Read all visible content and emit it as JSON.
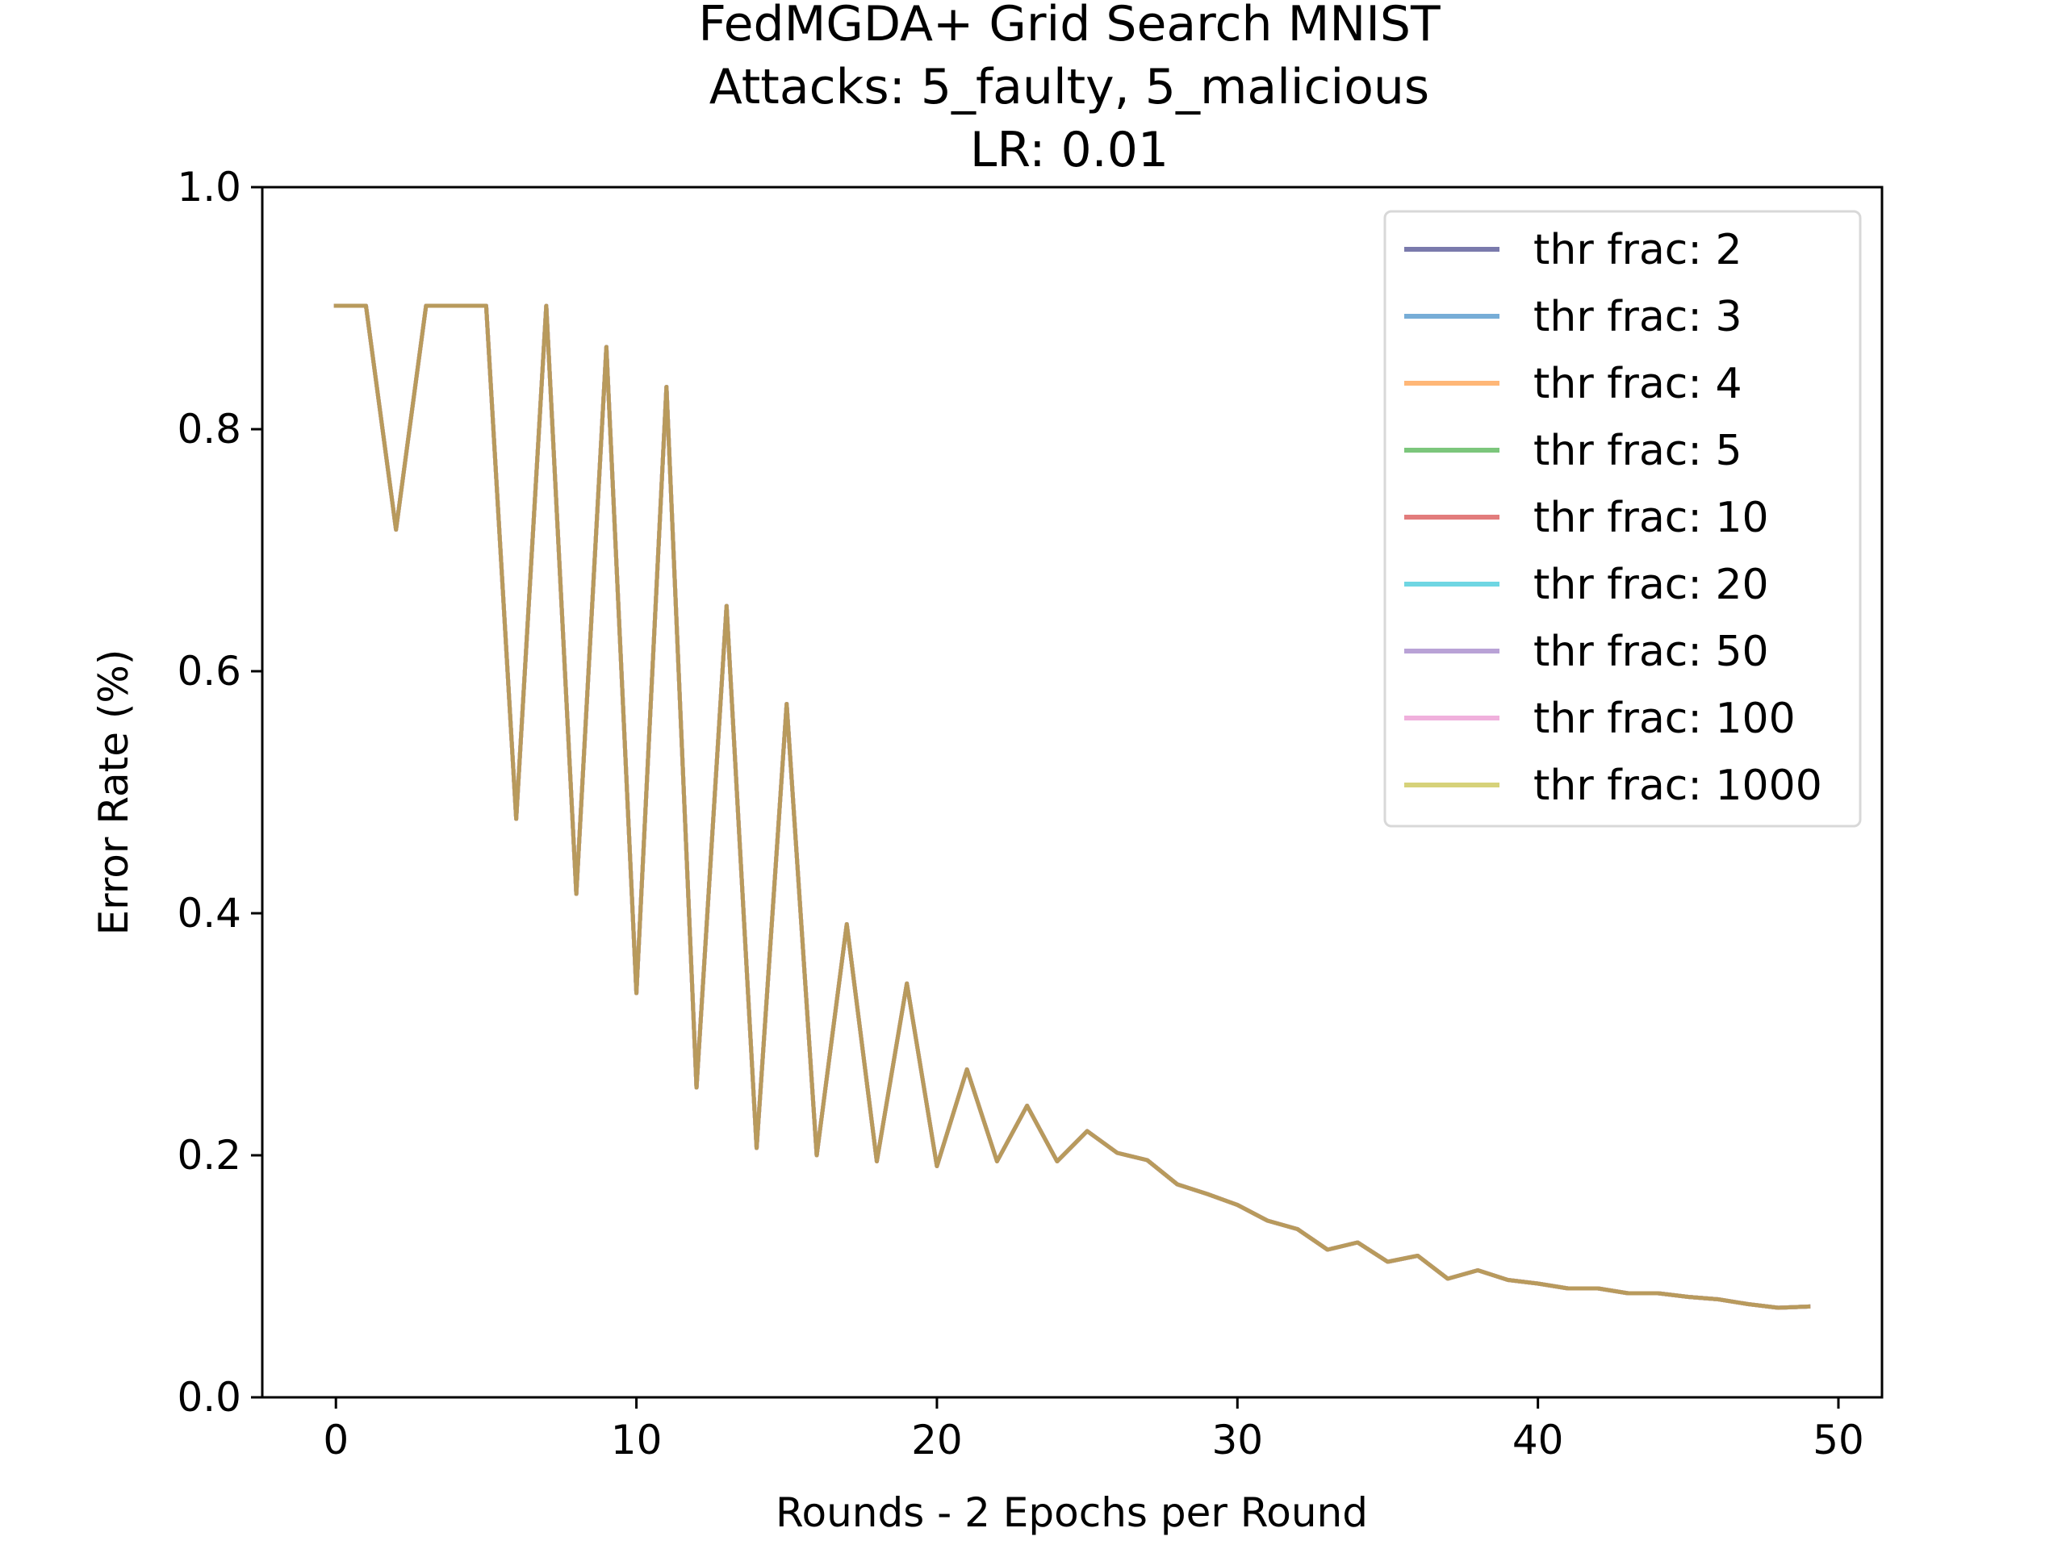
{
  "chart_data": {
    "type": "line",
    "title": "FedMGDA+ Grid Search MNIST",
    "subtitle_lines": [
      "Attacks: 5_faulty, 5_malicious",
      "LR: 0.01"
    ],
    "xlabel": "Rounds - 2 Epochs per Round",
    "ylabel": "Error Rate (%)",
    "xlim": [
      -2.45,
      51.45
    ],
    "ylim": [
      0,
      1.0
    ],
    "xticks": [
      0,
      10,
      20,
      30,
      40,
      50
    ],
    "xtick_labels": [
      "0",
      "10",
      "20",
      "30",
      "40",
      "50"
    ],
    "yticks": [
      0.0,
      0.2,
      0.4,
      0.6,
      0.8,
      1.0
    ],
    "ytick_labels": [
      "0.0",
      "0.2",
      "0.4",
      "0.6",
      "0.8",
      "1.0"
    ],
    "grid": false,
    "legend_position": "top-right",
    "x": [
      0,
      1,
      2,
      3,
      4,
      5,
      6,
      7,
      8,
      9,
      10,
      11,
      12,
      13,
      14,
      15,
      16,
      17,
      18,
      19,
      20,
      21,
      22,
      23,
      24,
      25,
      26,
      27,
      28,
      29,
      30,
      31,
      32,
      33,
      34,
      35,
      36,
      37,
      38,
      39,
      40,
      41,
      42,
      43,
      44,
      45,
      46,
      47,
      48,
      49
    ],
    "series": [
      {
        "name": "thr frac: 2",
        "color": "#7a7aac",
        "values": [
          0.902,
          0.902,
          0.717,
          0.902,
          0.902,
          0.902,
          0.478,
          0.902,
          0.416,
          0.868,
          0.334,
          0.835,
          0.256,
          0.654,
          0.206,
          0.573,
          0.2,
          0.391,
          0.195,
          0.342,
          0.191,
          0.271,
          0.195,
          0.241,
          0.195,
          0.22,
          0.202,
          0.196,
          0.176,
          0.168,
          0.159,
          0.146,
          0.139,
          0.122,
          0.128,
          0.112,
          0.117,
          0.098,
          0.105,
          0.097,
          0.094,
          0.09,
          0.09,
          0.086,
          0.086,
          0.083,
          0.081,
          0.077,
          0.074,
          0.075
        ]
      },
      {
        "name": "thr frac: 3",
        "color": "#77add7",
        "values": [
          0.902,
          0.902,
          0.717,
          0.902,
          0.902,
          0.902,
          0.478,
          0.902,
          0.416,
          0.868,
          0.334,
          0.835,
          0.256,
          0.654,
          0.206,
          0.573,
          0.2,
          0.391,
          0.195,
          0.342,
          0.191,
          0.271,
          0.195,
          0.241,
          0.195,
          0.22,
          0.202,
          0.196,
          0.176,
          0.168,
          0.159,
          0.146,
          0.139,
          0.122,
          0.128,
          0.112,
          0.117,
          0.098,
          0.105,
          0.097,
          0.094,
          0.09,
          0.09,
          0.086,
          0.086,
          0.083,
          0.081,
          0.077,
          0.074,
          0.075
        ]
      },
      {
        "name": "thr frac: 4",
        "color": "#ffb777",
        "values": [
          0.902,
          0.902,
          0.717,
          0.902,
          0.902,
          0.902,
          0.478,
          0.902,
          0.416,
          0.868,
          0.334,
          0.835,
          0.256,
          0.654,
          0.206,
          0.573,
          0.2,
          0.391,
          0.195,
          0.342,
          0.191,
          0.271,
          0.195,
          0.241,
          0.195,
          0.22,
          0.202,
          0.196,
          0.176,
          0.168,
          0.159,
          0.146,
          0.139,
          0.122,
          0.128,
          0.112,
          0.117,
          0.098,
          0.105,
          0.097,
          0.094,
          0.09,
          0.09,
          0.086,
          0.086,
          0.083,
          0.081,
          0.077,
          0.074,
          0.075
        ]
      },
      {
        "name": "thr frac: 5",
        "color": "#7cc67c",
        "values": [
          0.902,
          0.902,
          0.717,
          0.902,
          0.902,
          0.902,
          0.478,
          0.902,
          0.416,
          0.868,
          0.334,
          0.835,
          0.256,
          0.654,
          0.206,
          0.573,
          0.2,
          0.391,
          0.195,
          0.342,
          0.191,
          0.271,
          0.195,
          0.241,
          0.195,
          0.22,
          0.202,
          0.196,
          0.176,
          0.168,
          0.159,
          0.146,
          0.139,
          0.122,
          0.128,
          0.112,
          0.117,
          0.098,
          0.105,
          0.097,
          0.094,
          0.09,
          0.09,
          0.086,
          0.086,
          0.083,
          0.081,
          0.077,
          0.074,
          0.075
        ]
      },
      {
        "name": "thr frac: 10",
        "color": "#e27c7c",
        "values": [
          0.902,
          0.902,
          0.717,
          0.902,
          0.902,
          0.902,
          0.478,
          0.902,
          0.416,
          0.868,
          0.334,
          0.835,
          0.256,
          0.654,
          0.206,
          0.573,
          0.2,
          0.391,
          0.195,
          0.342,
          0.191,
          0.271,
          0.195,
          0.241,
          0.195,
          0.22,
          0.202,
          0.196,
          0.176,
          0.168,
          0.159,
          0.146,
          0.139,
          0.122,
          0.128,
          0.112,
          0.117,
          0.098,
          0.105,
          0.097,
          0.094,
          0.09,
          0.09,
          0.086,
          0.086,
          0.083,
          0.081,
          0.077,
          0.074,
          0.075
        ]
      },
      {
        "name": "thr frac: 20",
        "color": "#6fd6e3",
        "values": [
          0.902,
          0.902,
          0.717,
          0.902,
          0.902,
          0.902,
          0.478,
          0.902,
          0.416,
          0.868,
          0.334,
          0.835,
          0.256,
          0.654,
          0.206,
          0.573,
          0.2,
          0.391,
          0.195,
          0.342,
          0.191,
          0.271,
          0.195,
          0.241,
          0.195,
          0.22,
          0.202,
          0.196,
          0.176,
          0.168,
          0.159,
          0.146,
          0.139,
          0.122,
          0.128,
          0.112,
          0.117,
          0.098,
          0.105,
          0.097,
          0.094,
          0.09,
          0.09,
          0.086,
          0.086,
          0.083,
          0.081,
          0.077,
          0.074,
          0.075
        ]
      },
      {
        "name": "thr frac: 50",
        "color": "#b9a2d6",
        "values": [
          0.902,
          0.902,
          0.717,
          0.902,
          0.902,
          0.902,
          0.478,
          0.902,
          0.416,
          0.868,
          0.334,
          0.835,
          0.256,
          0.654,
          0.206,
          0.573,
          0.2,
          0.391,
          0.195,
          0.342,
          0.191,
          0.271,
          0.195,
          0.241,
          0.195,
          0.22,
          0.202,
          0.196,
          0.176,
          0.168,
          0.159,
          0.146,
          0.139,
          0.122,
          0.128,
          0.112,
          0.117,
          0.098,
          0.105,
          0.097,
          0.094,
          0.09,
          0.09,
          0.086,
          0.086,
          0.083,
          0.081,
          0.077,
          0.074,
          0.075
        ]
      },
      {
        "name": "thr frac: 100",
        "color": "#f0b0dc",
        "values": [
          0.902,
          0.902,
          0.717,
          0.902,
          0.902,
          0.902,
          0.478,
          0.902,
          0.416,
          0.868,
          0.334,
          0.835,
          0.256,
          0.654,
          0.206,
          0.573,
          0.2,
          0.391,
          0.195,
          0.342,
          0.191,
          0.271,
          0.195,
          0.241,
          0.195,
          0.22,
          0.202,
          0.196,
          0.176,
          0.168,
          0.159,
          0.146,
          0.139,
          0.122,
          0.128,
          0.112,
          0.117,
          0.098,
          0.105,
          0.097,
          0.094,
          0.09,
          0.09,
          0.086,
          0.086,
          0.083,
          0.081,
          0.077,
          0.074,
          0.075
        ]
      },
      {
        "name": "thr frac: 1000",
        "color": "#d6d27a",
        "values": [
          0.902,
          0.902,
          0.717,
          0.902,
          0.902,
          0.902,
          0.478,
          0.902,
          0.416,
          0.868,
          0.334,
          0.835,
          0.256,
          0.654,
          0.206,
          0.573,
          0.2,
          0.391,
          0.195,
          0.342,
          0.191,
          0.271,
          0.195,
          0.241,
          0.195,
          0.22,
          0.202,
          0.196,
          0.176,
          0.168,
          0.159,
          0.146,
          0.139,
          0.122,
          0.128,
          0.112,
          0.117,
          0.098,
          0.105,
          0.097,
          0.094,
          0.09,
          0.09,
          0.086,
          0.086,
          0.083,
          0.081,
          0.077,
          0.074,
          0.075
        ]
      }
    ],
    "visible_line_color": "#b89a5c"
  }
}
